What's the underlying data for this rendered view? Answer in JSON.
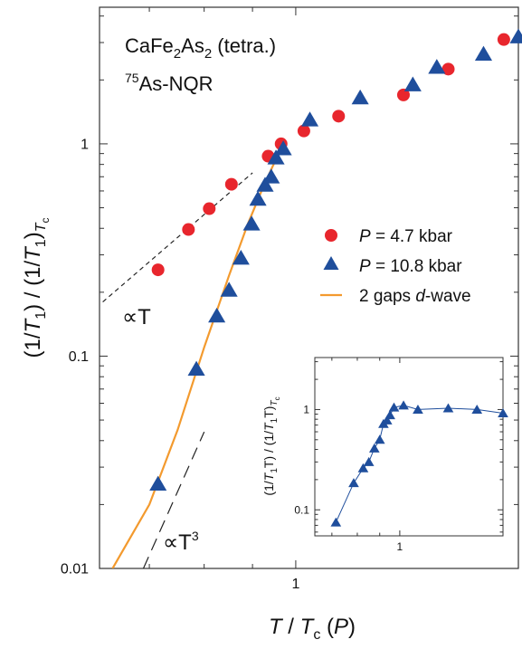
{
  "chart_data": [
    {
      "type": "scatter",
      "x_scale": "log",
      "y_scale": "log",
      "xlim": [
        0.62,
        1.72
      ],
      "ylim": [
        0.01,
        4.4
      ],
      "x_tick_labels": [
        "1"
      ],
      "y_tick_labels": [
        "0.01",
        "0.1",
        "1"
      ],
      "xlabel": {
        "main": "T",
        "sep": " / ",
        "t": "T",
        "t_sub": "c",
        "p": " (",
        "p_var": "P",
        "close": ")"
      },
      "ylabel": {
        "a": "(1/",
        "b": "T",
        "c_sub": "1",
        "d": ") / (1/",
        "e": "T",
        "f_sub": "1",
        "g": ")",
        "h_sub": "T",
        "i_sub": "c"
      },
      "annotations": {
        "compound_a": "CaFe",
        "compound_sub1": "2",
        "compound_b": "As",
        "compound_sub2": "2",
        "compound_c": " (tetra.)",
        "nucleus_sup": "75",
        "nucleus_text": "As-NQR",
        "propto_T": "∝T",
        "propto_T3": "∝T",
        "propto_T3_sup": "3"
      },
      "legend_position": "middle-right",
      "legend": [
        {
          "var": "P",
          "text": " = 4.7 kbar"
        },
        {
          "var": "P",
          "text": " = 10.8 kbar"
        },
        {
          "pre": "2 gaps ",
          "var": "d",
          "text": "-wave"
        }
      ],
      "series": [
        {
          "name": "P = 4.7 kbar",
          "marker": "circle",
          "color": "#e8262d",
          "x": [
            0.715,
            0.77,
            0.81,
            0.855,
            0.935,
            0.965,
            1.02,
            1.11,
            1.3,
            1.45,
            1.66
          ],
          "y": [
            0.255,
            0.395,
            0.495,
            0.645,
            0.875,
            1.0,
            1.15,
            1.35,
            1.7,
            2.25,
            3.1
          ]
        },
        {
          "name": "P = 10.8 kbar",
          "marker": "triangle",
          "color": "#1f4e9c",
          "x": [
            0.715,
            0.785,
            0.825,
            0.85,
            0.875,
            0.898,
            0.912,
            0.928,
            0.942,
            0.953,
            0.97,
            1.035,
            1.17,
            1.33,
            1.41,
            1.58,
            1.72
          ],
          "y": [
            0.025,
            0.087,
            0.155,
            0.205,
            0.29,
            0.42,
            0.55,
            0.64,
            0.7,
            0.86,
            0.95,
            1.3,
            1.65,
            1.9,
            2.3,
            2.65,
            3.2
          ]
        },
        {
          "name": "2 gaps d-wave",
          "line": true,
          "color": "#f39a2e",
          "x": [
            0.64,
            0.7,
            0.75,
            0.8,
            0.85,
            0.89,
            0.92,
            0.945,
            0.96,
            0.975
          ],
          "y": [
            0.01,
            0.02,
            0.045,
            0.11,
            0.24,
            0.42,
            0.6,
            0.78,
            0.9,
            1.0
          ]
        },
        {
          "name": "∝T guide",
          "line": true,
          "dashed": true,
          "color": "#222222",
          "x": [
            0.625,
            0.9
          ],
          "y": [
            0.18,
            0.73
          ]
        },
        {
          "name": "∝T^3 guide",
          "line": true,
          "dashed": true,
          "color": "#222222",
          "x": [
            0.69,
            0.8
          ],
          "y": [
            0.01,
            0.044
          ]
        }
      ]
    },
    {
      "type": "line",
      "x_scale": "log",
      "y_scale": "log",
      "xlim": [
        0.64,
        1.72
      ],
      "ylim": [
        0.055,
        3.3
      ],
      "x_tick_labels": [
        "1"
      ],
      "y_tick_labels": [
        "0.1",
        "1"
      ],
      "ylabel": {
        "a": "(1/",
        "b": "T",
        "c_sub": "1",
        "d": "T) / (1/",
        "e": "T",
        "f_sub": "1",
        "g": "T)",
        "h_sub": "T",
        "i_sub": "c"
      },
      "series": [
        {
          "name": "P = 10.8 kbar",
          "marker": "triangle",
          "color": "#1f4e9c",
          "x": [
            0.715,
            0.785,
            0.825,
            0.85,
            0.875,
            0.9,
            0.918,
            0.935,
            0.95,
            0.97,
            1.02,
            1.1,
            1.29,
            1.5,
            1.72
          ],
          "y": [
            0.075,
            0.185,
            0.26,
            0.3,
            0.41,
            0.5,
            0.72,
            0.78,
            0.88,
            1.05,
            1.1,
            1.0,
            1.03,
            1.0,
            0.92
          ]
        }
      ]
    }
  ]
}
